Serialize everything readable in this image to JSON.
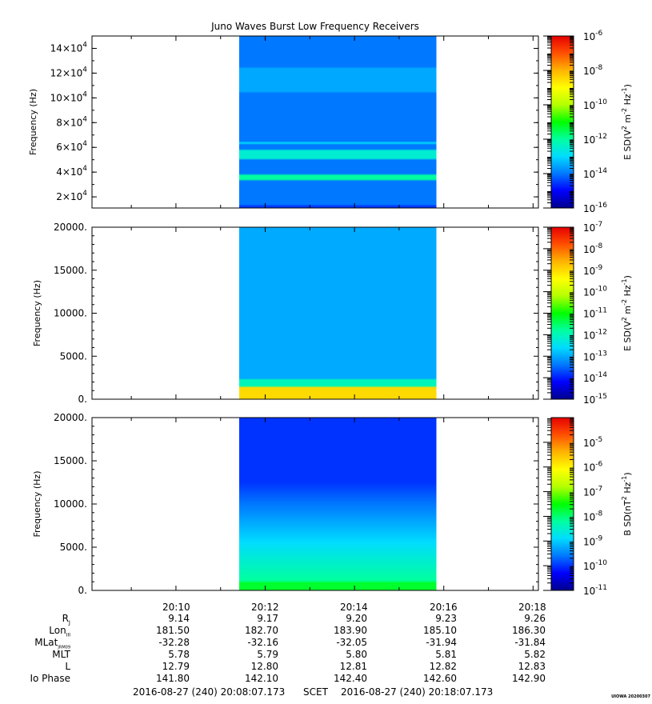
{
  "chart_data": [
    {
      "type": "heatmap",
      "title": "Juno Waves Burst Low Frequency Receivers",
      "ylabel": "Frequency (Hz)",
      "ylim": [
        11000,
        150000
      ],
      "y_tick_mantissas": [
        "2",
        "4",
        "6",
        "8",
        "10",
        "12",
        "14"
      ],
      "y_tick_exponent": "4",
      "colorbar": {
        "label_prefix": "E SD(V",
        "label_sup1": "2",
        "label_mid": " m",
        "label_sup2": "-2",
        "label_hz": " Hz",
        "label_sup3": "-1",
        "label_suffix": ")",
        "scale": "log",
        "range": [
          1e-16,
          1e-06
        ],
        "ticks": [
          "-6",
          "-8",
          "-10",
          "-12",
          "-14",
          "-16"
        ]
      },
      "data_interval": [
        "2016-08-27 20:11:25",
        "2016-08-27 20:15:50"
      ],
      "features": {
        "background_level": 1e-14,
        "bands_hz": [
          {
            "low": 34000,
            "high": 38000,
            "level": 1e-12
          },
          {
            "low": 50000,
            "high": 58000,
            "level": 3e-13
          },
          {
            "low": 62000,
            "high": 65000,
            "level": 1e-13
          },
          {
            "low": 105000,
            "high": 125000,
            "level": 3e-14
          }
        ]
      }
    },
    {
      "type": "heatmap",
      "ylabel": "Frequency (Hz)",
      "ylim": [
        0,
        20000
      ],
      "y_ticks": [
        "20000.",
        "15000.",
        "10000.",
        "5000.",
        "0."
      ],
      "colorbar": {
        "label_prefix": "E SD(V",
        "label_sup1": "2",
        "label_mid": " m",
        "label_sup2": "-2",
        "label_hz": " Hz",
        "label_sup3": "-1",
        "label_suffix": ")",
        "scale": "log",
        "range": [
          1e-15,
          1e-07
        ],
        "ticks": [
          "-7",
          "-8",
          "-9",
          "-10",
          "-11",
          "-12",
          "-13",
          "-14",
          "-15"
        ]
      },
      "data_interval": [
        "2016-08-27 20:11:25",
        "2016-08-27 20:15:50"
      ],
      "features": {
        "background_level": 1e-13,
        "low_freq_emission_hz": [
          0,
          1500
        ],
        "low_freq_level": 1e-09
      }
    },
    {
      "type": "heatmap",
      "ylabel": "Frequency (Hz)",
      "ylim": [
        0,
        20000
      ],
      "y_ticks": [
        "20000.",
        "15000.",
        "10000.",
        "5000.",
        "0."
      ],
      "colorbar": {
        "label_prefix": "B SD(nT",
        "label_sup1": "2",
        "label_hz": " Hz",
        "label_sup3": "-1",
        "label_suffix": ")",
        "scale": "log",
        "range": [
          1e-11,
          0.0001
        ],
        "ticks": [
          "-5",
          "-6",
          "-7",
          "-8",
          "-9",
          "-10",
          "-11"
        ]
      },
      "data_interval": [
        "2016-08-27 20:11:25",
        "2016-08-27 20:15:50"
      ],
      "features": {
        "high_freq_level": 1e-10,
        "low_freq_level": 1e-08,
        "low_freq_emission_hz": [
          0,
          1000
        ]
      }
    }
  ],
  "x_axis": {
    "tick_labels": [
      "20:10",
      "20:12",
      "20:14",
      "20:16",
      "20:18"
    ],
    "start": "2016-08-27 (240) 20:08:07.173",
    "end": "2016-08-27 (240) 20:18:07.173",
    "scet_label": "SCET"
  },
  "ephemeris": [
    {
      "label": "R",
      "sub": "J",
      "values": [
        "9.14",
        "9.17",
        "9.20",
        "9.23",
        "9.26"
      ]
    },
    {
      "label": "Lon",
      "sub": "III",
      "values": [
        "181.50",
        "182.70",
        "183.90",
        "185.10",
        "186.30"
      ]
    },
    {
      "label": "MLat",
      "sub": "JRM09",
      "values": [
        "-32.28",
        "-32.16",
        "-32.05",
        "-31.94",
        "-31.84"
      ]
    },
    {
      "label": "MLT",
      "sub": "",
      "values": [
        "5.78",
        "5.79",
        "5.80",
        "5.81",
        "5.82"
      ]
    },
    {
      "label": "L",
      "sub": "",
      "values": [
        "12.79",
        "12.80",
        "12.81",
        "12.82",
        "12.83"
      ]
    },
    {
      "label": "Io Phase",
      "sub": "",
      "values": [
        "141.80",
        "142.10",
        "142.40",
        "142.60",
        "142.90"
      ]
    }
  ],
  "credit": "UIOWA 20200307",
  "colors": {
    "colormap": [
      "#00008c",
      "#0000ff",
      "#0078ff",
      "#00dcff",
      "#00ffa0",
      "#00ff00",
      "#b4ff00",
      "#ffff00",
      "#ffb400",
      "#ff5000",
      "#e60000"
    ]
  }
}
